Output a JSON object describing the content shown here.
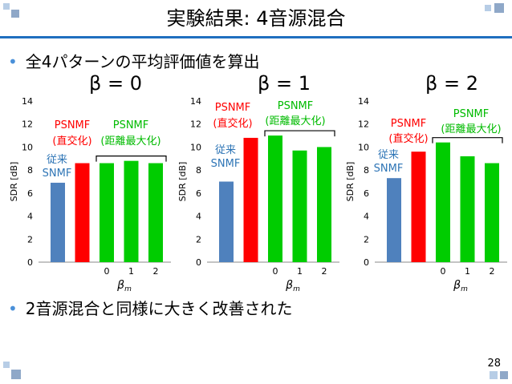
{
  "slide": {
    "title": "実験結果: 4音源混合",
    "bullets": [
      "全4パターンの平均評価値を算出",
      "2音源混合と同様に大きく改善された"
    ],
    "page_number": "28",
    "colors": {
      "accent": "#1f6fbf",
      "deco_light": "#b7cde6",
      "deco_dark": "#8fa8c8"
    }
  },
  "chart_data": [
    {
      "type": "bar",
      "title": "β = 0",
      "ylabel": "SDR [dB]",
      "xlabel": "β_m",
      "ylim": [
        0,
        14
      ],
      "yticks": [
        0,
        2,
        4,
        6,
        8,
        10,
        12,
        14
      ],
      "tick_labels": [
        "",
        "",
        "0",
        "1",
        "2"
      ],
      "values": [
        6.9,
        8.6,
        8.6,
        8.8,
        8.6
      ],
      "colors": [
        "#4f81bd",
        "#ff0000",
        "#00cc00",
        "#00cc00",
        "#00cc00"
      ],
      "annotations": {
        "baseline": [
          "従来",
          "SNMF"
        ],
        "orth": [
          "PSNMF",
          "(直交化)"
        ],
        "maxdist": [
          "PSNMF",
          "(距離最大化)"
        ]
      }
    },
    {
      "type": "bar",
      "title": "β = 1",
      "ylabel": "SDR [dB]",
      "xlabel": "β_m",
      "ylim": [
        0,
        14
      ],
      "yticks": [
        0,
        2,
        4,
        6,
        8,
        10,
        12,
        14
      ],
      "tick_labels": [
        "",
        "",
        "0",
        "1",
        "2"
      ],
      "values": [
        7.0,
        10.8,
        11.0,
        9.7,
        10.0
      ],
      "colors": [
        "#4f81bd",
        "#ff0000",
        "#00cc00",
        "#00cc00",
        "#00cc00"
      ],
      "annotations": {
        "baseline": [
          "従来",
          "SNMF"
        ],
        "orth": [
          "PSNMF",
          "(直交化)"
        ],
        "maxdist": [
          "PSNMF",
          "(距離最大化)"
        ]
      }
    },
    {
      "type": "bar",
      "title": "β = 2",
      "ylabel": "SDR [dB]",
      "xlabel": "β_m",
      "ylim": [
        0,
        14
      ],
      "yticks": [
        0,
        2,
        4,
        6,
        8,
        10,
        12,
        14
      ],
      "tick_labels": [
        "",
        "",
        "0",
        "1",
        "2"
      ],
      "values": [
        7.3,
        9.6,
        10.4,
        9.2,
        8.6
      ],
      "colors": [
        "#4f81bd",
        "#ff0000",
        "#00cc00",
        "#00cc00",
        "#00cc00"
      ],
      "annotations": {
        "baseline": [
          "従来",
          "SNMF"
        ],
        "orth": [
          "PSNMF",
          "(直交化)"
        ],
        "maxdist": [
          "PSNMF",
          "(距離最大化)"
        ]
      }
    }
  ]
}
